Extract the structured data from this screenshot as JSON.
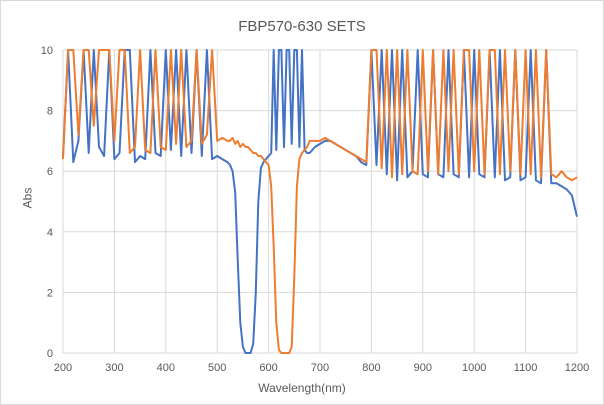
{
  "chart_data": {
    "type": "line",
    "title": "FBP570-630 SETS",
    "xlabel": "Wavelength(nm)",
    "ylabel": "Abs",
    "xlim": [
      200,
      1200
    ],
    "ylim": [
      0,
      10
    ],
    "xticks": [
      200,
      300,
      400,
      500,
      600,
      700,
      800,
      900,
      1000,
      1100,
      1200
    ],
    "yticks": [
      0,
      2,
      4,
      6,
      8,
      10
    ],
    "grid": true,
    "x": [
      200,
      210,
      220,
      230,
      240,
      250,
      260,
      270,
      280,
      290,
      300,
      310,
      320,
      330,
      340,
      350,
      360,
      370,
      380,
      390,
      400,
      410,
      420,
      430,
      440,
      450,
      460,
      470,
      480,
      490,
      500,
      510,
      520,
      525,
      530,
      535,
      540,
      545,
      550,
      555,
      560,
      565,
      570,
      575,
      580,
      585,
      590,
      595,
      600,
      605,
      610,
      615,
      620,
      625,
      630,
      635,
      640,
      645,
      650,
      655,
      660,
      665,
      670,
      675,
      680,
      690,
      700,
      710,
      720,
      730,
      740,
      750,
      760,
      770,
      780,
      790,
      800,
      810,
      820,
      830,
      840,
      850,
      860,
      870,
      880,
      890,
      900,
      910,
      920,
      930,
      940,
      950,
      960,
      970,
      980,
      990,
      1000,
      1010,
      1020,
      1030,
      1040,
      1050,
      1060,
      1070,
      1080,
      1090,
      1100,
      1110,
      1120,
      1130,
      1140,
      1150,
      1160,
      1170,
      1180,
      1190,
      1200
    ],
    "series": [
      {
        "color": "#4472C4",
        "values": [
          6.5,
          10,
          6.3,
          7,
          10,
          6.6,
          10,
          6.8,
          6.5,
          10,
          6.4,
          6.6,
          10,
          10,
          6.3,
          6.5,
          6.4,
          10,
          6.6,
          6.5,
          10,
          6.7,
          10,
          6.5,
          10,
          6.6,
          10,
          6.5,
          10,
          6.4,
          6.5,
          6.4,
          6.3,
          6.2,
          6,
          5.3,
          3,
          1,
          0.2,
          0,
          0,
          0,
          0.3,
          2,
          5,
          6.1,
          6.3,
          6.4,
          6.5,
          6.6,
          10,
          6.7,
          10,
          10,
          6.8,
          10,
          10,
          6.9,
          10,
          10,
          6.8,
          10,
          6.7,
          6.6,
          6.6,
          6.8,
          6.9,
          7,
          7,
          6.9,
          6.8,
          6.7,
          6.6,
          6.5,
          6.3,
          6.2,
          10,
          6.2,
          10,
          5.9,
          10,
          5.7,
          10,
          5.8,
          6,
          10,
          5.9,
          5.8,
          10,
          5.9,
          5.8,
          10,
          5.9,
          5.8,
          10,
          5.8,
          10,
          5.9,
          5.8,
          10,
          5.8,
          10,
          5.7,
          5.8,
          10,
          5.7,
          5.8,
          10,
          5.7,
          5.6,
          10,
          5.6,
          5.6,
          5.5,
          5.4,
          5.2,
          4.5
        ]
      },
      {
        "color": "#ED7D31",
        "values": [
          6.4,
          10,
          10,
          7.2,
          10,
          10,
          7.5,
          10,
          10,
          10,
          7,
          10,
          10,
          6.6,
          6.8,
          10,
          6.7,
          6.6,
          10,
          6.8,
          6.7,
          10,
          6.9,
          10,
          6.8,
          7,
          10,
          6.9,
          7.2,
          10,
          7,
          7.1,
          7,
          7,
          7.1,
          6.9,
          7,
          6.8,
          6.9,
          6.8,
          6.8,
          6.7,
          6.6,
          6.6,
          6.5,
          6.5,
          6.4,
          6.3,
          6.2,
          5.5,
          3.5,
          1,
          0.1,
          0,
          0,
          0,
          0,
          0.2,
          2.5,
          5.5,
          6.4,
          6.6,
          6.7,
          6.8,
          7,
          7,
          7,
          7.1,
          7,
          6.9,
          6.8,
          6.7,
          6.6,
          6.5,
          6.4,
          6.3,
          10,
          10,
          6.1,
          10,
          5.8,
          10,
          5.9,
          10,
          6,
          5.9,
          10,
          6,
          10,
          5.9,
          10,
          6,
          10,
          5.9,
          10,
          10,
          6,
          10,
          5.9,
          10,
          10,
          5.9,
          10,
          6,
          10,
          5.9,
          10,
          5.9,
          10,
          5.8,
          10,
          5.9,
          5.8,
          6,
          5.8,
          5.7,
          5.8
        ]
      }
    ]
  }
}
